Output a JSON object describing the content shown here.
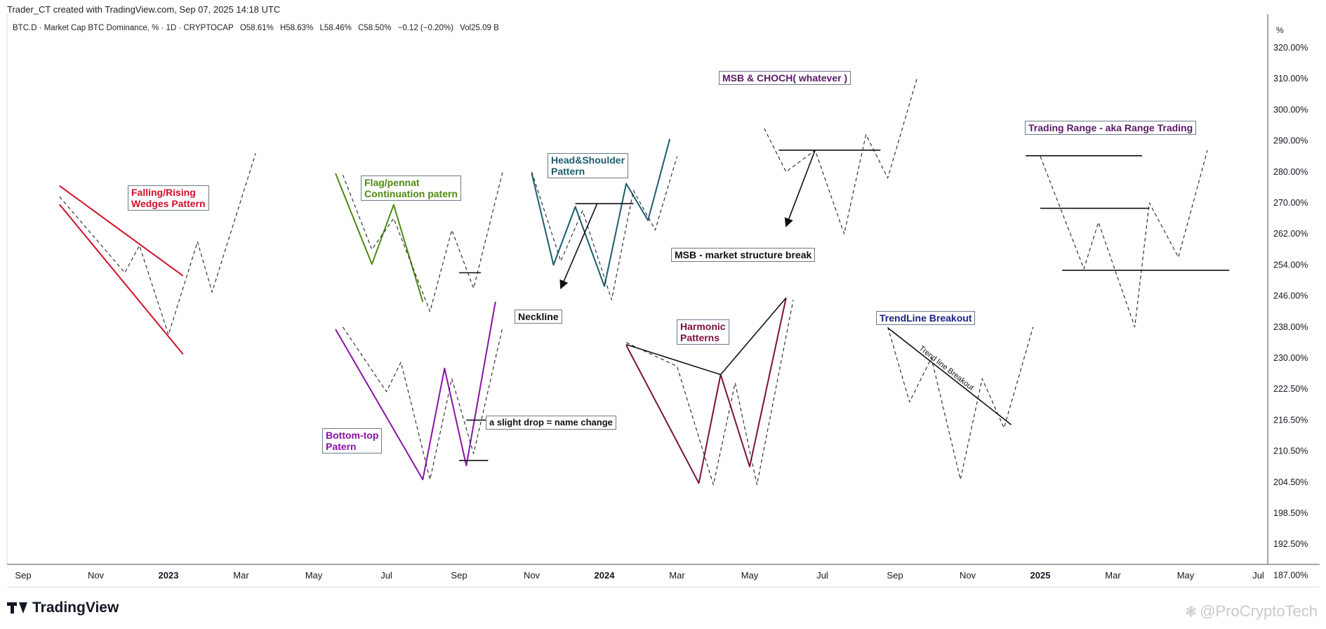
{
  "header": {
    "credit": "Trader_CT created with TradingView.com, Sep 07, 2025 14:18 UTC",
    "symbol": "BTC.D · Market Cap BTC Dominance, % · 1D · CRYPTOCAP",
    "open": "O58.61%",
    "high": "H58.63%",
    "low": "L58.46%",
    "close": "C58.50%",
    "change": "−0.12 (−0.20%)",
    "volume": "Vol25.09 B",
    "unit": "%"
  },
  "footer": {
    "brand": "TradingView",
    "watermark": "@ProCryptoTech"
  },
  "colors": {
    "red": "#d0102a",
    "green": "#4e8a10",
    "teal": "#1c5e6b",
    "purple": "#8a12a6",
    "maroon": "#7b1040",
    "navy": "#1a237e",
    "black": "#111111",
    "dashed": "#222222"
  },
  "annotations": {
    "wedges": "Falling/Rising\nWedges Pattern",
    "flag": "Flag/pennat\nContinuation patern",
    "hs": "Head&Shoulder\nPattern",
    "msb_choch": "MSB & CHOCH( whatever )",
    "range": "Trading Range - aka Range Trading",
    "msb": "MSB - market structure break",
    "neckline": "Neckline",
    "harmonic": "Harmonic\nPatterns",
    "trendline": "TrendLine Breakout",
    "trendline_label": "Trend line Breakout",
    "slight_drop": "a slight drop = name change",
    "bottom_top": "Bottom-top\nPatern"
  },
  "chart_data": {
    "type": "line",
    "title": "",
    "xlabel": "",
    "ylabel": "%",
    "y_ticks": [
      "320.00%",
      "310.00%",
      "300.00%",
      "290.00%",
      "280.00%",
      "270.00%",
      "262.00%",
      "254.00%",
      "246.00%",
      "238.00%",
      "230.00%",
      "222.50%",
      "216.50%",
      "210.50%",
      "204.50%",
      "198.50%",
      "192.50%",
      "187.00%"
    ],
    "x_ticks": [
      "Sep",
      "Nov",
      "2023",
      "Mar",
      "May",
      "Jul",
      "Sep",
      "Nov",
      "2024",
      "Mar",
      "May",
      "Jul",
      "Sep",
      "Nov",
      "2025",
      "Mar",
      "May",
      "Jul"
    ],
    "x_tick_bold": [
      false,
      false,
      true,
      false,
      false,
      false,
      false,
      false,
      true,
      false,
      false,
      false,
      false,
      false,
      true,
      false,
      false,
      false
    ],
    "grid": false,
    "series": [
      {
        "color": "red",
        "style": "solid",
        "points": [
          [
            0.5,
            275.5
          ],
          [
            2.2,
            251.2
          ]
        ]
      },
      {
        "color": "red",
        "style": "solid",
        "points": [
          [
            0.5,
            269.6
          ],
          [
            2.2,
            231.0
          ]
        ]
      },
      {
        "color": "dashed",
        "style": "dashed",
        "points": [
          [
            0.5,
            272
          ],
          [
            1.4,
            252
          ],
          [
            1.6,
            259
          ],
          [
            2.0,
            236
          ],
          [
            2.4,
            260
          ],
          [
            2.6,
            247
          ],
          [
            3.2,
            286
          ]
        ]
      },
      {
        "color": "green",
        "style": "solid",
        "points": [
          [
            4.3,
            279.5
          ],
          [
            4.8,
            254.2
          ],
          [
            5.1,
            269.5
          ],
          [
            5.5,
            244.5
          ]
        ]
      },
      {
        "color": "dashed",
        "style": "dashed",
        "points": [
          [
            4.4,
            279
          ],
          [
            4.8,
            258
          ],
          [
            5.1,
            266
          ],
          [
            5.6,
            242
          ],
          [
            5.9,
            263
          ],
          [
            6.2,
            248
          ],
          [
            6.6,
            280
          ]
        ]
      },
      {
        "color": "black",
        "style": "solid",
        "points": [
          [
            6.0,
            252.0
          ],
          [
            6.3,
            252.0
          ]
        ]
      },
      {
        "color": "purple",
        "style": "solid",
        "points": [
          [
            4.3,
            237.4
          ],
          [
            5.5,
            205.0
          ],
          [
            5.8,
            227.5
          ],
          [
            6.1,
            207.7
          ],
          [
            6.5,
            244.5
          ]
        ]
      },
      {
        "color": "dashed",
        "style": "dashed",
        "points": [
          [
            4.4,
            238
          ],
          [
            5.0,
            222
          ],
          [
            5.2,
            229
          ],
          [
            5.6,
            205
          ],
          [
            5.9,
            225
          ],
          [
            6.2,
            210
          ],
          [
            6.6,
            238
          ]
        ]
      },
      {
        "color": "black",
        "style": "solid",
        "points": [
          [
            6.1,
            216.5
          ],
          [
            6.4,
            216.5
          ]
        ]
      },
      {
        "color": "black",
        "style": "solid",
        "points": [
          [
            6.0,
            208.7
          ],
          [
            6.4,
            208.7
          ]
        ]
      },
      {
        "color": "teal",
        "style": "solid",
        "points": [
          [
            7.0,
            279.5
          ],
          [
            7.3,
            254.0
          ],
          [
            7.6,
            269.0
          ],
          [
            8.0,
            248.5
          ],
          [
            8.3,
            276.2
          ],
          [
            8.6,
            265.5
          ],
          [
            8.9,
            290.6
          ]
        ]
      },
      {
        "color": "dashed",
        "style": "dashed",
        "points": [
          [
            7.0,
            280
          ],
          [
            7.4,
            255
          ],
          [
            7.7,
            268
          ],
          [
            8.1,
            245
          ],
          [
            8.4,
            274
          ],
          [
            8.7,
            263
          ],
          [
            9.0,
            285
          ]
        ]
      },
      {
        "color": "black",
        "style": "solid",
        "points": [
          [
            7.6,
            269.8
          ],
          [
            8.4,
            269.8
          ]
        ]
      },
      {
        "color": "black",
        "style": "solid",
        "points": [
          [
            7.9,
            269.8
          ],
          [
            7.4,
            248.0
          ]
        ],
        "arrow": true
      },
      {
        "color": "maroon",
        "style": "solid",
        "points": [
          [
            8.3,
            233.3
          ],
          [
            9.3,
            204.3
          ],
          [
            9.6,
            226.0
          ],
          [
            10.0,
            207.5
          ],
          [
            10.5,
            245.5
          ]
        ]
      },
      {
        "color": "dashed",
        "style": "dashed",
        "points": [
          [
            8.3,
            234
          ],
          [
            9.0,
            228
          ],
          [
            9.5,
            204
          ],
          [
            9.8,
            224
          ],
          [
            10.1,
            204
          ],
          [
            10.6,
            245
          ]
        ]
      },
      {
        "color": "black",
        "style": "solid",
        "points": [
          [
            8.3,
            233.5
          ],
          [
            9.6,
            226.0
          ],
          [
            10.5,
            245.5
          ]
        ]
      },
      {
        "color": "dashed",
        "style": "dashed",
        "points": [
          [
            10.2,
            294
          ],
          [
            10.5,
            280
          ],
          [
            10.9,
            287
          ],
          [
            11.3,
            262
          ],
          [
            11.6,
            292
          ],
          [
            11.9,
            278
          ],
          [
            12.3,
            310
          ]
        ]
      },
      {
        "color": "black",
        "style": "solid",
        "points": [
          [
            10.4,
            287.0
          ],
          [
            11.8,
            287.0
          ]
        ]
      },
      {
        "color": "black",
        "style": "solid",
        "points": [
          [
            10.9,
            287.0
          ],
          [
            10.5,
            264.0
          ]
        ],
        "arrow": true
      },
      {
        "color": "black",
        "style": "solid",
        "points": [
          [
            13.8,
            285.2
          ],
          [
            15.4,
            285.2
          ]
        ]
      },
      {
        "color": "black",
        "style": "solid",
        "points": [
          [
            14.0,
            268.6
          ],
          [
            15.5,
            268.6
          ]
        ]
      },
      {
        "color": "black",
        "style": "solid",
        "points": [
          [
            14.3,
            252.6
          ],
          [
            16.6,
            252.6
          ]
        ]
      },
      {
        "color": "dashed",
        "style": "dashed",
        "points": [
          [
            14.0,
            285
          ],
          [
            14.6,
            253
          ],
          [
            14.8,
            265
          ],
          [
            15.3,
            238
          ],
          [
            15.5,
            270
          ],
          [
            15.9,
            256
          ],
          [
            16.3,
            287
          ]
        ]
      },
      {
        "color": "black",
        "style": "solid",
        "points": [
          [
            11.9,
            237.8
          ],
          [
            13.6,
            215.6
          ]
        ]
      },
      {
        "color": "dashed",
        "style": "dashed",
        "points": [
          [
            11.9,
            238
          ],
          [
            12.2,
            220
          ],
          [
            12.5,
            230
          ],
          [
            12.9,
            205
          ],
          [
            13.2,
            225
          ],
          [
            13.5,
            215
          ],
          [
            13.9,
            238
          ]
        ]
      }
    ]
  }
}
